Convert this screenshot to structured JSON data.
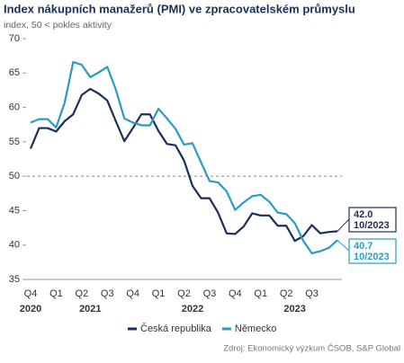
{
  "chart_data": {
    "type": "line",
    "title": "Index nákupních manažerů (PMI) ve zpracovatelském průmyslu",
    "subtitle": "index, 50 < pokles aktivity",
    "source": "Zdroj: Ekonomický výzkum ČSOB, S&P Global",
    "categories": [
      "Q4",
      null,
      null,
      "Q1",
      null,
      null,
      "Q2",
      null,
      null,
      "Q3",
      null,
      null,
      "Q4",
      null,
      null,
      "Q1",
      null,
      null,
      "Q2",
      null,
      null,
      "Q3",
      null,
      null,
      "Q4",
      null,
      null,
      "Q1",
      null,
      null,
      "Q2",
      null,
      null,
      "Q3",
      null,
      null,
      null
    ],
    "years": [
      "2020",
      null,
      null,
      null,
      null,
      null,
      null,
      "2021",
      null,
      null,
      null,
      null,
      null,
      null,
      null,
      null,
      null,
      null,
      null,
      "2022",
      null,
      null,
      null,
      null,
      null,
      null,
      null,
      null,
      null,
      null,
      null,
      "2023",
      null,
      null,
      null,
      null,
      null
    ],
    "series": [
      {
        "name": "Česká republika",
        "color": "#1b2f5b",
        "values": [
          54,
          57,
          57,
          56.5,
          58,
          59,
          61.8,
          62.7,
          62,
          61,
          58,
          55.1,
          57,
          59,
          59,
          56.6,
          54.7,
          54.5,
          52.3,
          48.6,
          46.8,
          46.8,
          44.7,
          41.7,
          41.6,
          42.7,
          44.6,
          44.3,
          44.3,
          42.8,
          42.8,
          40.6,
          41.3,
          42.9,
          41.7,
          41.9,
          42
        ],
        "value_labels": [
          null,
          null,
          null,
          null,
          null,
          null,
          null,
          null,
          null,
          null,
          null,
          null,
          null,
          null,
          null,
          null,
          null,
          null,
          null,
          null,
          null,
          null,
          null,
          null,
          null,
          null,
          null,
          null,
          null,
          null,
          null,
          null,
          null,
          null,
          null,
          null,
          "42.0"
        ],
        "end_date": "10/2023"
      },
      {
        "name": "Německo",
        "color": "#2a9cc3",
        "values": [
          57.8,
          58.3,
          58.3,
          57.1,
          60.7,
          66.6,
          66.2,
          64.4,
          65.1,
          65.9,
          62.6,
          58.4,
          57.8,
          57.4,
          57.4,
          59.8,
          58.4,
          56.9,
          54.6,
          54.8,
          52,
          49.3,
          49.1,
          47.8,
          45.1,
          46.2,
          47.1,
          47.3,
          46.3,
          44.7,
          44.5,
          43.2,
          40.6,
          38.8,
          39.1,
          39.6,
          40.7
        ],
        "value_labels": [
          null,
          null,
          null,
          null,
          null,
          null,
          null,
          null,
          null,
          null,
          null,
          null,
          null,
          null,
          null,
          null,
          null,
          null,
          null,
          null,
          null,
          null,
          null,
          null,
          null,
          null,
          null,
          null,
          null,
          null,
          null,
          null,
          null,
          null,
          null,
          null,
          "40.7"
        ],
        "end_date": "10/2023"
      }
    ],
    "ylim": [
      35,
      70
    ],
    "yticks": [
      35,
      40,
      45,
      50,
      55,
      60,
      65,
      70
    ],
    "reference_line": 50,
    "grid": false,
    "legend": "bottom"
  }
}
